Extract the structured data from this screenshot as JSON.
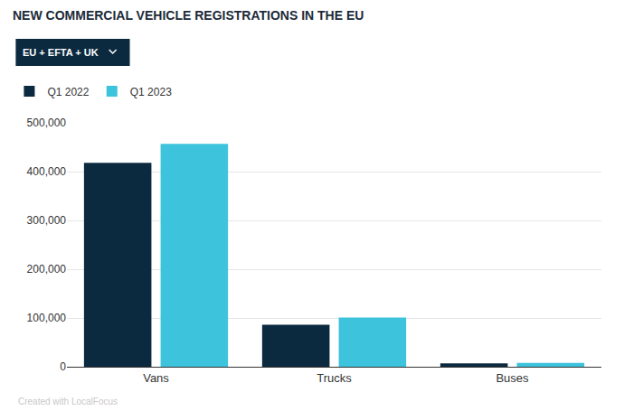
{
  "chart_data": {
    "type": "bar",
    "title": "NEW COMMERCIAL VEHICLE REGISTRATIONS IN THE EU",
    "subtitle": "EU + EFTA + UK",
    "categories": [
      "Vans",
      "Trucks",
      "Buses"
    ],
    "series": [
      {
        "name": "Q1 2022",
        "color": "#0b2a3f",
        "values": [
          418000,
          86000,
          7000
        ]
      },
      {
        "name": "Q1 2023",
        "color": "#3ec3dc",
        "values": [
          457000,
          101000,
          8000
        ]
      }
    ],
    "ylim": [
      0,
      500000
    ],
    "yticks": [
      0,
      {
        "value": 100000,
        "label": "100,000"
      },
      {
        "value": 200000,
        "label": "200,000"
      },
      {
        "value": 300000,
        "label": "300,000"
      },
      {
        "value": 400000,
        "label": "400,000"
      },
      {
        "value": 500000,
        "label": "500,000"
      }
    ],
    "grid": true,
    "legend": "top-left",
    "annotations": [
      "Created with LocalFocus"
    ]
  }
}
